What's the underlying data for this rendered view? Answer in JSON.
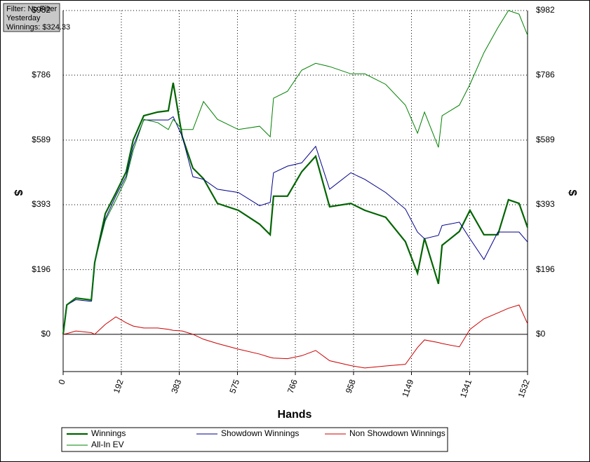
{
  "chart_data": {
    "type": "line",
    "info": [
      "Filter: No Filter",
      "Yesterday",
      "Winnings: $324.33"
    ],
    "x_label": "Hands",
    "y_label": "$",
    "y2_label": "$",
    "x": [
      0,
      12,
      42,
      93,
      104,
      139,
      174,
      208,
      231,
      266,
      312,
      347,
      363,
      393,
      428,
      463,
      509,
      578,
      648,
      683,
      694,
      740,
      787,
      833,
      879,
      949,
      995,
      1064,
      1129,
      1169,
      1192,
      1238,
      1250,
      1307,
      1342,
      1388,
      1434,
      1469,
      1504,
      1532
    ],
    "series": [
      {
        "name": "Winnings",
        "color": "#006400",
        "width": 2.2,
        "values": [
          0,
          89,
          110,
          104,
          217,
          366,
          429,
          493,
          589,
          663,
          674,
          678,
          763,
          599,
          504,
          472,
          397,
          376,
          334,
          302,
          419,
          419,
          493,
          540,
          387,
          397,
          376,
          355,
          281,
          185,
          291,
          153,
          270,
          312,
          376,
          302,
          302,
          408,
          397,
          324
        ]
      },
      {
        "name": "Showdown Winnings",
        "color": "#00008b",
        "width": 1,
        "values": [
          0,
          89,
          105,
          100,
          217,
          350,
          420,
          480,
          570,
          650,
          650,
          650,
          660,
          600,
          478,
          470,
          440,
          430,
          390,
          400,
          490,
          510,
          520,
          570,
          440,
          490,
          470,
          430,
          380,
          310,
          290,
          300,
          330,
          340,
          290,
          227,
          310,
          310,
          310,
          280
        ]
      },
      {
        "name": "Non Showdown Winnings",
        "color": "#cc0000",
        "width": 1,
        "values": [
          0,
          2,
          10,
          5,
          0,
          30,
          53,
          35,
          25,
          19,
          19,
          15,
          12,
          10,
          0,
          -15,
          -28,
          -45,
          -60,
          -70,
          -72,
          -74,
          -65,
          -49,
          -80,
          -95,
          -102,
          -96,
          -91,
          -40,
          -17,
          -25,
          -28,
          -38,
          15,
          47,
          65,
          79,
          89,
          32
        ]
      },
      {
        "name": "All-In EV",
        "color": "#008000",
        "width": 1,
        "values": [
          0,
          89,
          110,
          104,
          217,
          344,
          408,
          472,
          557,
          652,
          642,
          621,
          652,
          621,
          621,
          706,
          652,
          621,
          631,
          599,
          716,
          737,
          801,
          822,
          812,
          790,
          790,
          758,
          695,
          610,
          674,
          567,
          663,
          695,
          758,
          854,
          930,
          982,
          971,
          907
        ]
      }
    ],
    "xlim": [
      0,
      1532
    ],
    "xticks": [
      0,
      192,
      383,
      575,
      766,
      958,
      1149,
      1341,
      1532
    ],
    "ylim": [
      -113,
      982
    ],
    "yticks": [
      {
        "value": 0,
        "label": "$0"
      },
      {
        "value": 196,
        "label": "$196"
      },
      {
        "value": 393,
        "label": "$393"
      },
      {
        "value": 589,
        "label": "$589"
      },
      {
        "value": 786,
        "label": "$786"
      },
      {
        "value": 982,
        "label": "$982"
      }
    ],
    "grid": true
  }
}
